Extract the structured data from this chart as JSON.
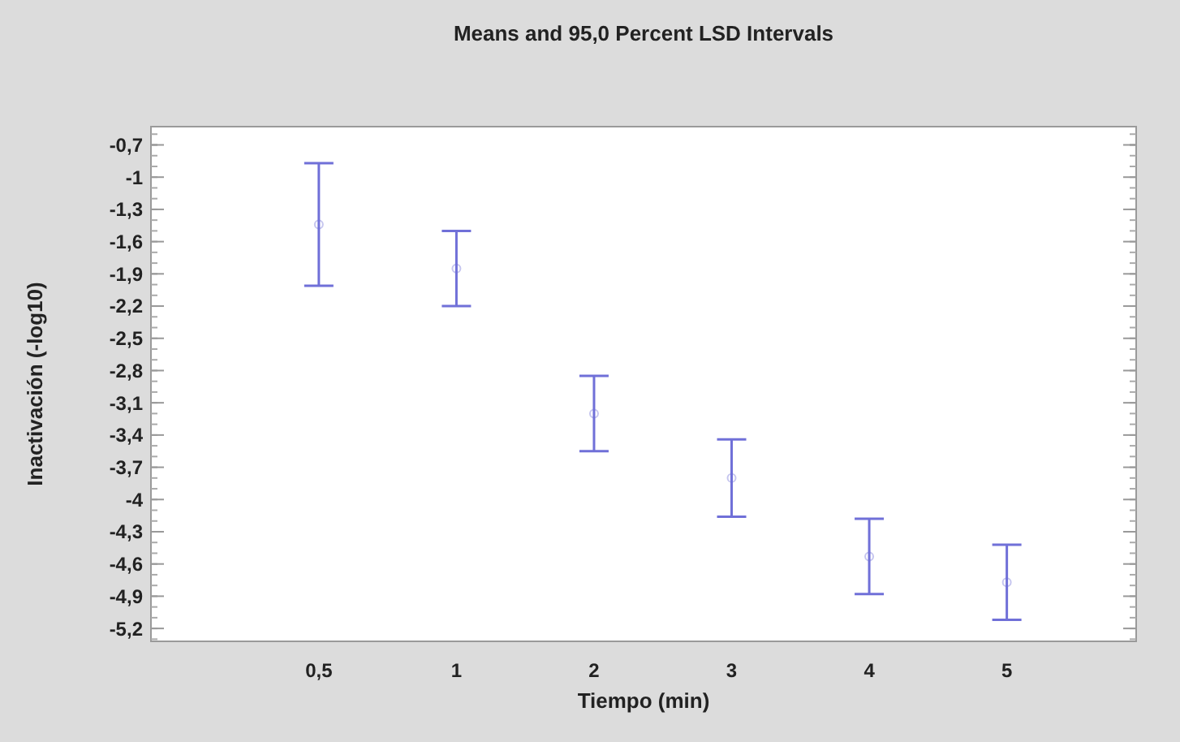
{
  "chart_data": {
    "type": "scatter",
    "title": "Means and 95,0 Percent LSD Intervals",
    "xlabel": "Tiempo (min)",
    "ylabel": "Inactivación (-log10)",
    "categories": [
      "0,5",
      "1",
      "2",
      "3",
      "4",
      "5"
    ],
    "series": [
      {
        "color": "#7070d8",
        "values": [
          -1.44,
          -1.85,
          -3.2,
          -3.8,
          -4.53,
          -4.77
        ],
        "errors": [
          0.57,
          0.35,
          0.35,
          0.36,
          0.35,
          0.35
        ]
      }
    ],
    "marker": "circle",
    "ylim": [
      -5.32,
      -0.53
    ],
    "yticks": [
      {
        "value": -0.7,
        "label": "-0,7"
      },
      {
        "value": -1,
        "label": "-1"
      },
      {
        "value": -1.3,
        "label": "-1,3"
      },
      {
        "value": -1.6,
        "label": "-1,6"
      },
      {
        "value": -1.9,
        "label": "-1,9"
      },
      {
        "value": -2.2,
        "label": "-2,2"
      },
      {
        "value": -2.5,
        "label": "-2,5"
      },
      {
        "value": -2.8,
        "label": "-2,8"
      },
      {
        "value": -3.1,
        "label": "-3,1"
      },
      {
        "value": -3.4,
        "label": "-3,4"
      },
      {
        "value": -3.7,
        "label": "-3,7"
      },
      {
        "value": -4,
        "label": "-4"
      },
      {
        "value": -4.3,
        "label": "-4,3"
      },
      {
        "value": -4.6,
        "label": "-4,6"
      },
      {
        "value": -4.9,
        "label": "-4,9"
      },
      {
        "value": -5.2,
        "label": "-5,2"
      }
    ]
  }
}
